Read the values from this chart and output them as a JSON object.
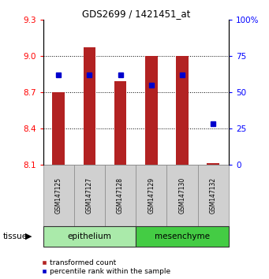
{
  "title": "GDS2699 / 1421451_at",
  "samples": [
    "GSM147125",
    "GSM147127",
    "GSM147128",
    "GSM147129",
    "GSM147130",
    "GSM147132"
  ],
  "bar_values": [
    8.7,
    9.07,
    8.79,
    9.0,
    9.0,
    8.11
  ],
  "bar_base": 8.1,
  "percentile_values": [
    62,
    62,
    62,
    55,
    62,
    28
  ],
  "ylim_left": [
    8.1,
    9.3
  ],
  "ylim_right": [
    0,
    100
  ],
  "yticks_left": [
    8.1,
    8.4,
    8.7,
    9.0,
    9.3
  ],
  "yticks_right": [
    0,
    25,
    50,
    75,
    100
  ],
  "bar_color": "#B22222",
  "marker_color": "#0000CC",
  "tissue_groups": [
    {
      "label": "epithelium",
      "indices": [
        0,
        1,
        2
      ],
      "color": "#AAEAAA"
    },
    {
      "label": "mesenchyme",
      "indices": [
        3,
        4,
        5
      ],
      "color": "#44CC44"
    }
  ],
  "legend_label_bar": "transformed count",
  "legend_label_marker": "percentile rank within the sample",
  "tissue_label": "tissue",
  "fig_width": 3.41,
  "fig_height": 3.54,
  "dpi": 100
}
